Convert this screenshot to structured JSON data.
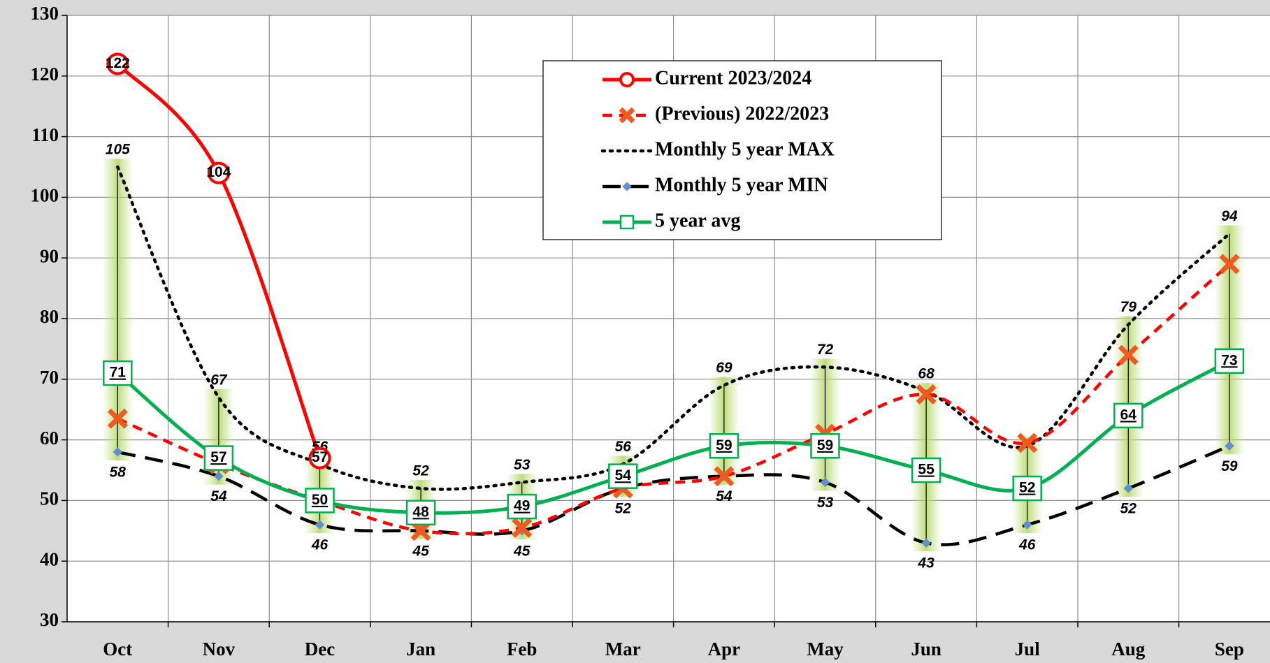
{
  "chart_data": {
    "type": "line",
    "categories": [
      "Oct",
      "Nov",
      "Dec",
      "Jan",
      "Feb",
      "Mar",
      "Apr",
      "May",
      "Jun",
      "Jul",
      "Aug",
      "Sep"
    ],
    "ylim": [
      30,
      130
    ],
    "yticks": [
      30,
      40,
      50,
      60,
      70,
      80,
      90,
      100,
      110,
      120,
      130
    ],
    "grid": true,
    "legend": "top-center",
    "series": [
      {
        "name": "Current 2023/2024",
        "color": "#ff0000",
        "style": "solid",
        "marker": "circle",
        "labels": true,
        "values": [
          122,
          104,
          57,
          null,
          null,
          null,
          null,
          null,
          null,
          null,
          null,
          null
        ]
      },
      {
        "name": "(Previous) 2022/2023",
        "color": "#ff0000",
        "marker_color": "#f05a1e",
        "style": "dashed",
        "marker": "x",
        "labels": false,
        "values": [
          63.5,
          56,
          50,
          45,
          45.5,
          52,
          54,
          61,
          67.5,
          59.5,
          74,
          89
        ]
      },
      {
        "name": "Monthly 5 year MAX",
        "color": "#000000",
        "style": "dotted",
        "marker": "none",
        "labels": true,
        "label_pos": "above",
        "values": [
          105,
          67,
          56,
          52,
          53,
          56,
          69,
          72,
          68,
          59,
          79,
          94
        ],
        "value_labels": [
          "105",
          "67",
          "56",
          "52",
          "53",
          "56",
          "69",
          "72",
          "68",
          null,
          "79",
          "94"
        ]
      },
      {
        "name": "Monthly 5 year MIN",
        "color": "#000000",
        "marker_color": "#5b8fd6",
        "style": "longdash",
        "marker": "diamond",
        "labels": true,
        "label_pos": "below",
        "values": [
          58,
          54,
          46,
          45,
          45,
          52,
          54,
          53,
          43,
          46,
          52,
          59
        ]
      },
      {
        "name": "5 year avg",
        "color": "#00b050",
        "style": "solid",
        "marker": "square",
        "labels": true,
        "values": [
          71,
          57,
          50,
          48,
          49,
          54,
          59,
          59,
          55,
          52,
          64,
          73
        ]
      }
    ]
  }
}
